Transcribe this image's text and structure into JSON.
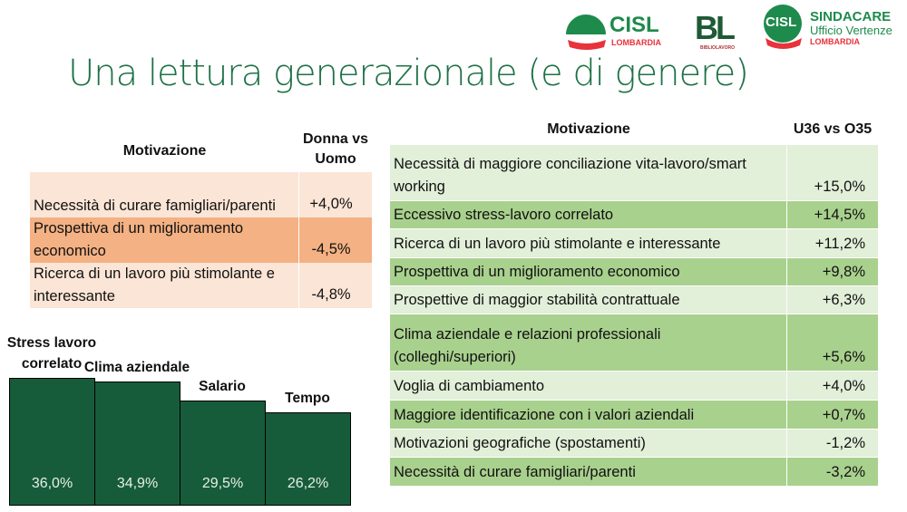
{
  "logos": {
    "cisl": "CISL",
    "cisl_sub": "LOMBARDIA",
    "bl": "BL",
    "bl_sub": "BIBLIOLAVORO",
    "sind_badge": "CISL",
    "sind1": "SINDACARE",
    "sind2": "Ufficio Vertenze",
    "sind3": "LOMBARDIA"
  },
  "title": "Una lettura generazionale (e di genere)",
  "gender_table": {
    "headers": [
      "Motivazione",
      "Donna vs Uomo"
    ],
    "rows": [
      {
        "label": "Necessità di curare famigliari/parenti",
        "value": "+4,0%"
      },
      {
        "label": "Prospettiva di un miglioramento economico",
        "value": "-4,5%"
      },
      {
        "label": "Ricerca di un lavoro più stimolante e interessante",
        "value": "-4,8%"
      }
    ]
  },
  "age_table": {
    "headers": [
      "Motivazione",
      "U36 vs O35"
    ],
    "rows": [
      {
        "label": "Necessità di maggiore conciliazione vita-lavoro/smart working",
        "value": "+15,0%"
      },
      {
        "label": "Eccessivo stress-lavoro correlato",
        "value": "+14,5%"
      },
      {
        "label": "Ricerca di un lavoro più stimolante e interessante",
        "value": "+11,2%"
      },
      {
        "label": "Prospettiva di un miglioramento economico",
        "value": "+9,8%"
      },
      {
        "label": "Prospettive di maggior stabilità contrattuale",
        "value": "+6,3%"
      },
      {
        "label": "Clima aziendale e relazioni professionali (colleghi/superiori)",
        "value": "+5,6%"
      },
      {
        "label": "Voglia di cambiamento",
        "value": "+4,0%"
      },
      {
        "label": "Maggiore identificazione con i valori aziendali",
        "value": "+0,7%"
      },
      {
        "label": "Motivazioni geografiche (spostamenti)",
        "value": "-1,2%"
      },
      {
        "label": "Necessità di curare famigliari/parenti",
        "value": "-3,2%"
      }
    ]
  },
  "chart_data": {
    "type": "bar",
    "categories": [
      "Stress lavoro correlato",
      "Clima aziendale",
      "Salario",
      "Tempo"
    ],
    "values": [
      36.0,
      34.9,
      29.5,
      26.2
    ],
    "labels": [
      "36,0%",
      "34,9%",
      "29,5%",
      "26,2%"
    ],
    "color": "#175c3a"
  },
  "colors": {
    "title": "#1e7145",
    "peach_light": "#fbe5d6",
    "peach_dark": "#f4b183",
    "green_light": "#e2efd9",
    "green_dark": "#a9d18e"
  }
}
